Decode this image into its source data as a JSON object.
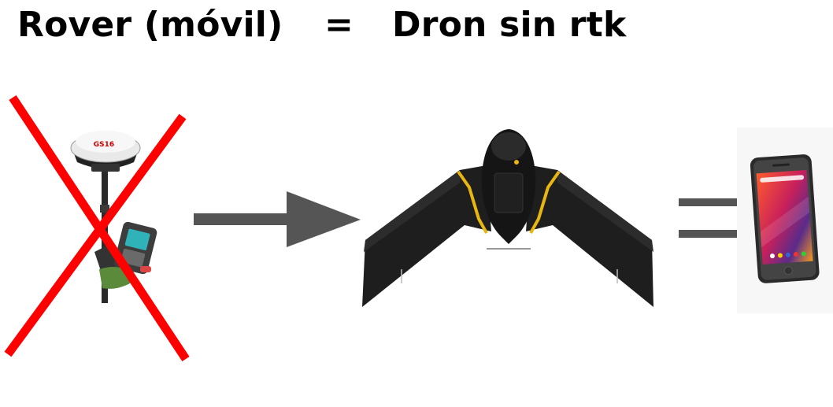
{
  "header": {
    "left_text": "Rover (móvil)",
    "equals_text": "=",
    "right_text": "Dron sin rtk"
  },
  "gnss_receiver": {
    "antenna_label": "GS16"
  },
  "icons": {
    "cross": "red-x-icon",
    "arrow": "arrow-right-icon",
    "equals": "equals-icon"
  },
  "colors": {
    "cross": "#ff0000",
    "arrow": "#555555",
    "equals": "#555555",
    "drone_body": "#1b1b1b",
    "drone_accent": "#e8b60f"
  }
}
